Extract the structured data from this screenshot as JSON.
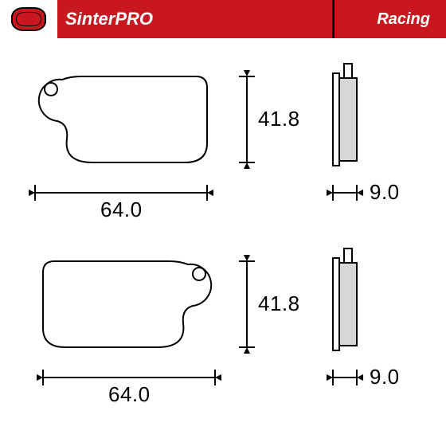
{
  "header": {
    "brand": "SinterPRO",
    "category": "Racing",
    "bg_color": "#c8171f",
    "logo_bg": "#ffffff",
    "sep_color": "#000000",
    "text_color": "#ffffff"
  },
  "diagram": {
    "stroke": "#000000",
    "stroke_width": 2,
    "pad_fill": "#ffffff",
    "side_fill": "#d7d7d7",
    "label_fontsize": 26,
    "label_color": "#000000",
    "pads": [
      {
        "width_label": "64.0",
        "height_label": "41.8",
        "thickness_label": "9.0"
      },
      {
        "width_label": "64.0",
        "height_label": "41.8",
        "thickness_label": "9.0"
      }
    ],
    "arrow_size": 9,
    "tick_half": 10
  }
}
